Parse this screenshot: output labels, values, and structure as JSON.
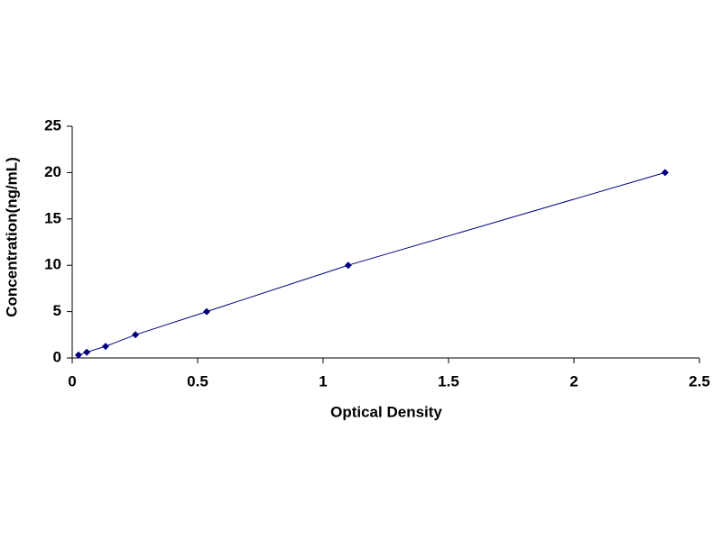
{
  "chart_data": {
    "type": "scatter",
    "line": true,
    "x_label": "Optical Density",
    "y_label": "Concentration(ng/mL)",
    "x": [
      0.025,
      0.058,
      0.133,
      0.252,
      0.536,
      1.1,
      2.363
    ],
    "values": [
      0.3125,
      0.625,
      1.25,
      2.5,
      5,
      10,
      20
    ],
    "color": "#000080",
    "xlim": [
      0,
      2.5
    ],
    "xticks": [
      0,
      0.5,
      1,
      1.5,
      2,
      2.5
    ],
    "ylim": [
      0,
      25
    ],
    "yticks": [
      0,
      5,
      10,
      15,
      20,
      25
    ],
    "grid": false
  }
}
